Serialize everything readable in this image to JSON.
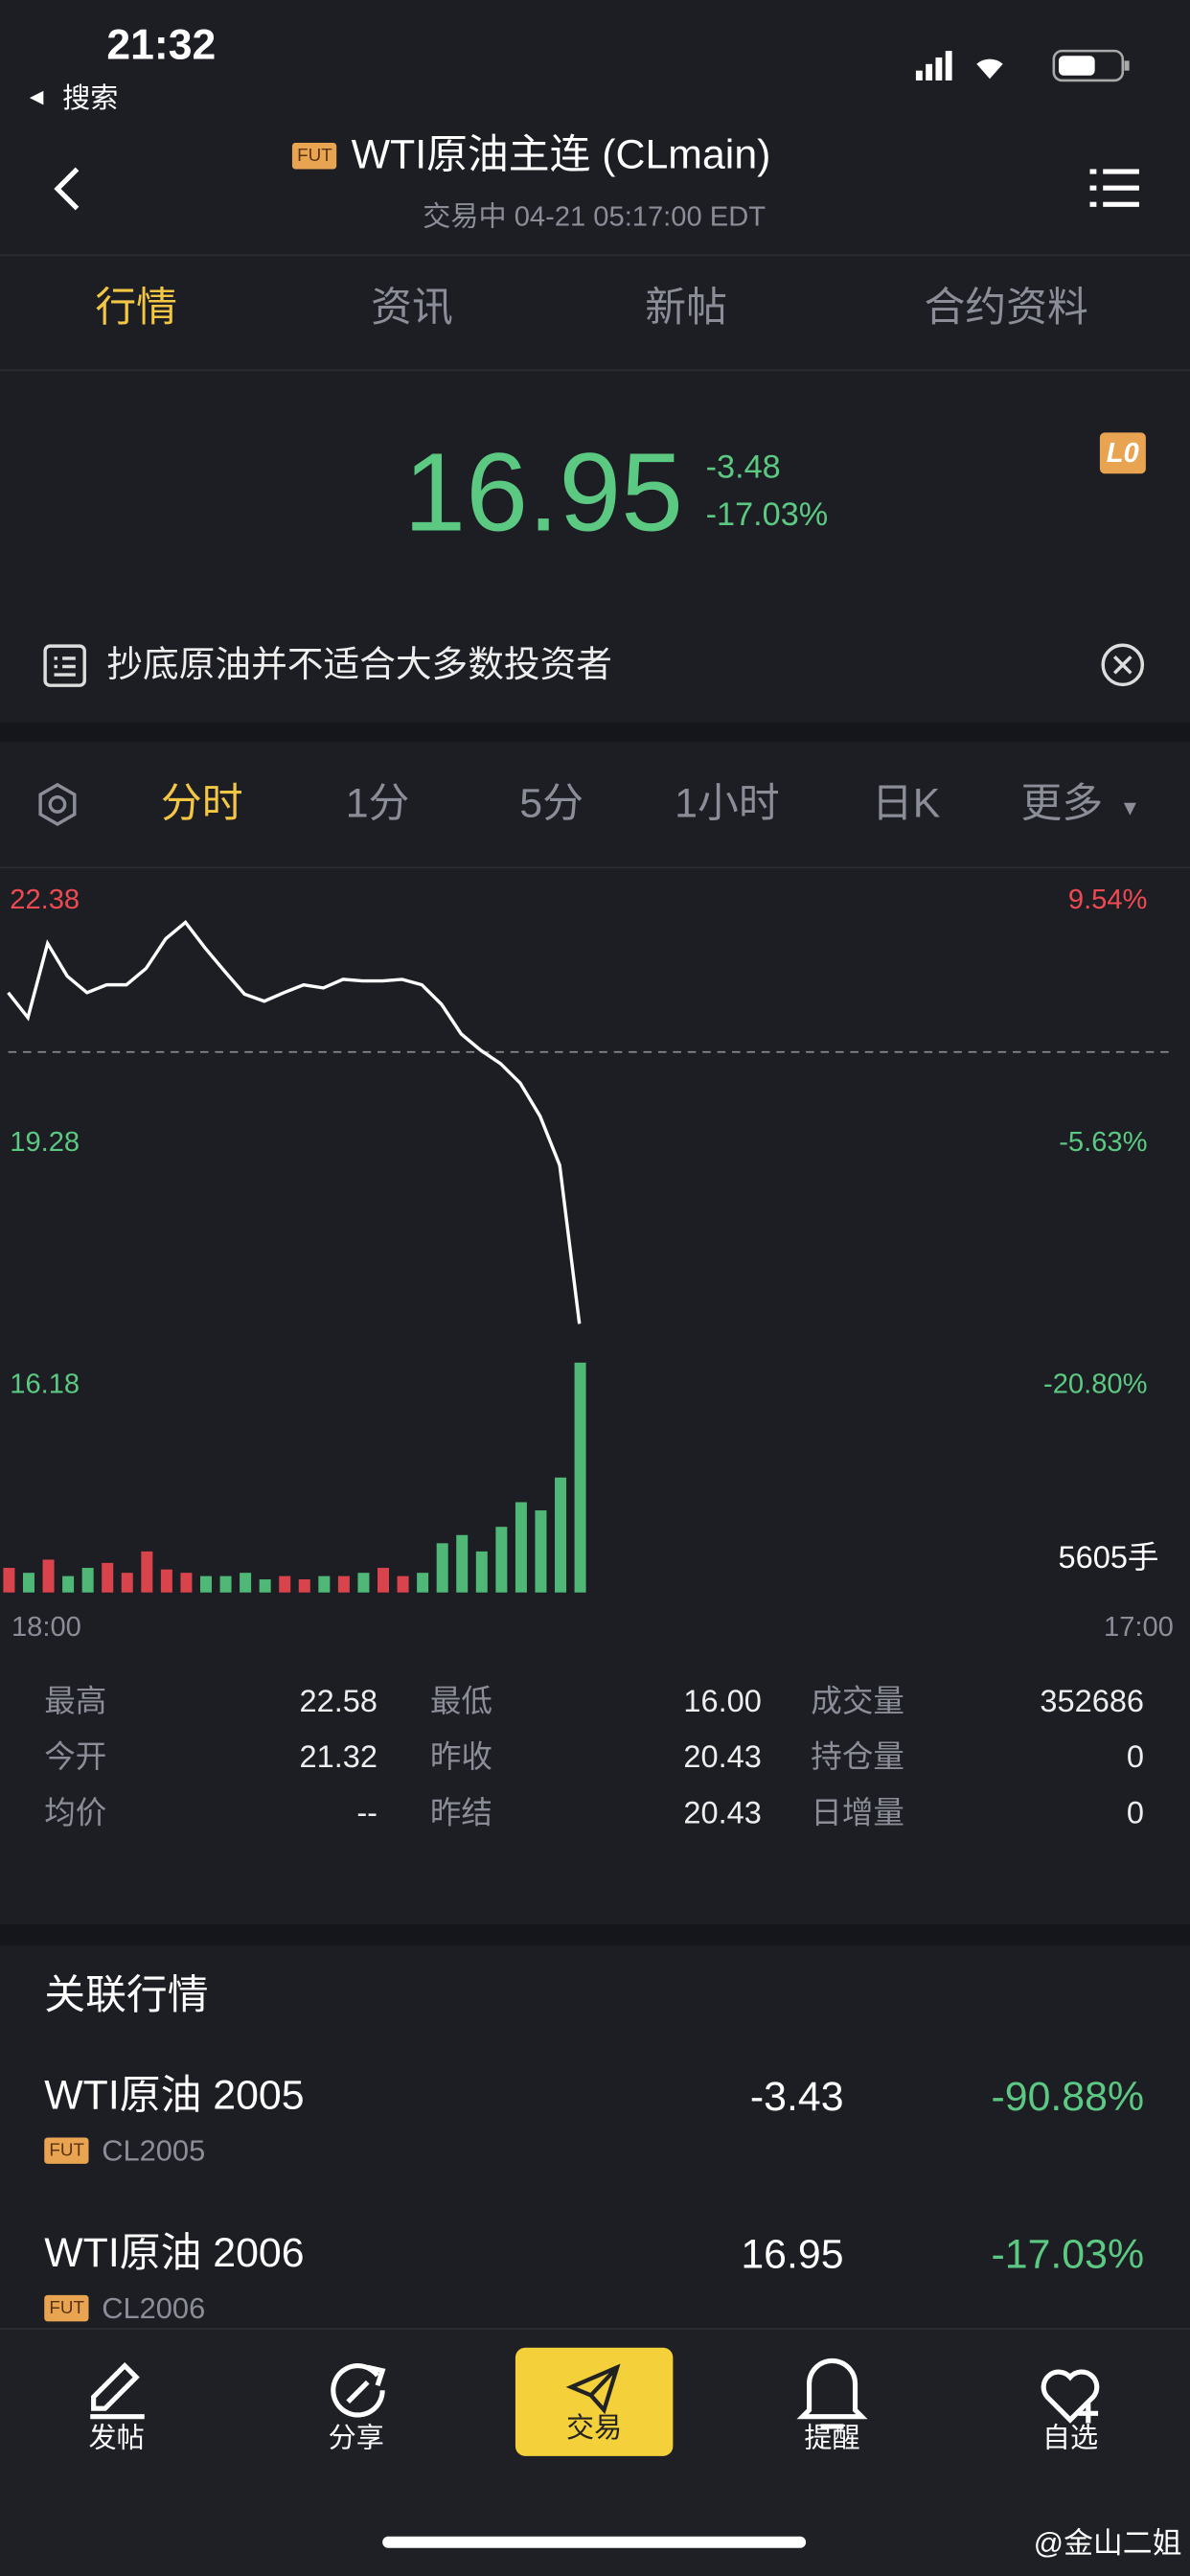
{
  "status_bar": {
    "time": "21:32",
    "back_app": "搜索"
  },
  "header": {
    "badge": "FUT",
    "title": "WTI原油主连 (CLmain)",
    "subtitle": "交易中 04-21 05:17:00 EDT"
  },
  "tabs": [
    "行情",
    "资讯",
    "新帖",
    "合约资料"
  ],
  "quote": {
    "price": "16.95",
    "change": "-3.48",
    "change_pct": "-17.03%",
    "badge": "L0"
  },
  "notice": "抄底原油并不适合大多数投资者",
  "chart_tabs": [
    "分时",
    "1分",
    "5分",
    "1小时",
    "日K",
    "更多"
  ],
  "chart_data": {
    "type": "line",
    "values": [
      21.19,
      20.87,
      21.82,
      21.4,
      21.19,
      21.29,
      21.29,
      21.5,
      21.88,
      22.09,
      21.76,
      21.46,
      21.17,
      21.08,
      21.19,
      21.29,
      21.25,
      21.36,
      21.34,
      21.34,
      21.36,
      21.29,
      21.04,
      20.66,
      20.45,
      20.28,
      20.03,
      19.61,
      18.98,
      16.95
    ],
    "color": "#ffffff",
    "ylim": [
      16.18,
      22.38
    ],
    "yticks": [
      22.38,
      19.28,
      16.18
    ],
    "y2lim": [
      -20.8,
      9.54
    ],
    "y2ticks": [
      {
        "value": 9.54,
        "label": "9.54%"
      },
      {
        "value": -5.63,
        "label": "-5.63%"
      },
      {
        "value": -20.8,
        "label": "-20.80%"
      }
    ],
    "reference_line": 20.43,
    "x_labels": [
      "18:00",
      "17:00"
    ],
    "volume_values": [
      600,
      480,
      801,
      400,
      600,
      721,
      480,
      1001,
      561,
      480,
      400,
      400,
      480,
      320,
      400,
      320,
      400,
      400,
      480,
      600,
      400,
      480,
      1201,
      1401,
      1001,
      1601,
      2202,
      2002,
      2803,
      5605
    ],
    "volume_max": 5605,
    "volume_label": "5605手"
  },
  "stats": [
    [
      [
        "最高",
        "22.58"
      ],
      [
        "最低",
        "16.00"
      ],
      [
        "成交量",
        "352686"
      ]
    ],
    [
      [
        "今开",
        "21.32"
      ],
      [
        "昨收",
        "20.43"
      ],
      [
        "持仓量",
        "0"
      ]
    ],
    [
      [
        "均价",
        "--"
      ],
      [
        "昨结",
        "20.43"
      ],
      [
        "日增量",
        "0"
      ]
    ]
  ],
  "related": {
    "title": "关联行情",
    "items": [
      {
        "name": "WTI原油 2005",
        "badge": "FUT",
        "code": "CL2005",
        "change": "-3.43",
        "change_pct": "-90.88%"
      },
      {
        "name": "WTI原油 2006",
        "badge": "FUT",
        "code": "CL2006",
        "change": "16.95",
        "change_pct": "-17.03%"
      }
    ]
  },
  "nav": [
    "发帖",
    "分享",
    "交易",
    "提醒",
    "自选"
  ],
  "watermark": "@金山二姐"
}
